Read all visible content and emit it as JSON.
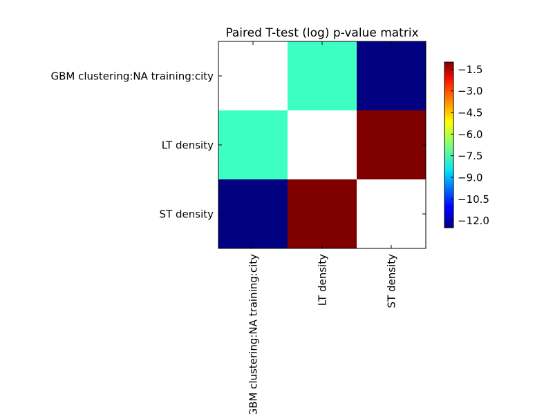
{
  "chart_data": {
    "type": "heatmap",
    "title": "Paired T-test (log) p-value matrix",
    "xlabel": "",
    "ylabel": "",
    "row_labels": [
      "GBM clustering:NA training:city",
      "LT density",
      "ST density"
    ],
    "col_labels": [
      "GBM clustering:NA training:city",
      "LT density",
      "ST density"
    ],
    "values": [
      [
        null,
        -7.5,
        -12.5
      ],
      [
        -7.5,
        null,
        -1.0
      ],
      [
        -12.5,
        -1.0,
        null
      ]
    ],
    "color_range": [
      -12.5,
      -1.0
    ],
    "colormap": "jet",
    "missing_color": "#ffffff",
    "colorbar": {
      "ticks": [
        -1.5,
        -3.0,
        -4.5,
        -6.0,
        -7.5,
        -9.0,
        -10.5,
        -12.0
      ],
      "tick_labels": [
        "−1.5",
        "−3.0",
        "−4.5",
        "−6.0",
        "−7.5",
        "−9.0",
        "−10.5",
        "−12.0"
      ]
    },
    "grid": false
  }
}
